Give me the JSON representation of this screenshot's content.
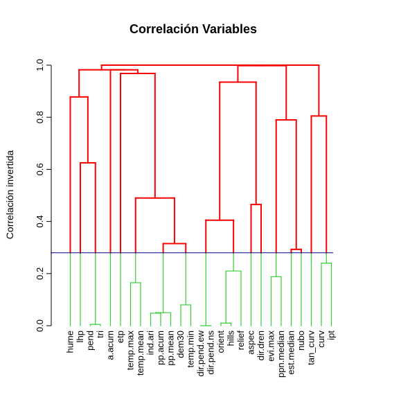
{
  "chart_data": {
    "type": "dendrogram",
    "title": "Correlación Variables",
    "ylabel": "Correlación invertida",
    "ylim": [
      0,
      1
    ],
    "yticks": [
      "0.0",
      "0.2",
      "0.4",
      "0.6",
      "0.8",
      "1.0"
    ],
    "cut_line": {
      "height": 0.28,
      "color": "#00008b"
    },
    "colors": {
      "above_cut": "#ff0000",
      "below_cut": "#32cd32"
    },
    "leaves": [
      "hume",
      "lhp",
      "pend",
      "tri",
      "a.acum",
      "etp",
      "temp.max",
      "temp.mean",
      "ind.ari",
      "pp.acum",
      "pp.mean",
      "dem30",
      "temp.min",
      "dir.pend.ew",
      "dir.pend.ns",
      "orient",
      "hills",
      "relief",
      "aspec",
      "dir.dren",
      "evi.max",
      "ppn.median",
      "est.median",
      "nubo",
      "tan_curv",
      "curv",
      "ipt"
    ],
    "merges": [
      [
        -14,
        -15,
        0.0
      ],
      [
        -9,
        -10,
        0.048
      ],
      [
        -16,
        -17,
        0.01
      ],
      [
        -3,
        -4,
        0.005
      ],
      [
        -11,
        2,
        0.05
      ],
      [
        -18,
        3,
        0.21
      ],
      [
        -12,
        -13,
        0.08
      ],
      [
        -7,
        -8,
        0.165
      ],
      [
        -21,
        -22,
        0.188
      ],
      [
        -26,
        -27,
        0.24
      ],
      [
        5,
        7,
        0.315
      ],
      [
        -23,
        -24,
        0.293
      ],
      [
        1,
        6,
        0.405
      ],
      [
        8,
        11,
        0.49
      ],
      [
        -19,
        -20,
        0.465
      ],
      [
        -2,
        4,
        0.625
      ],
      [
        9,
        12,
        0.79
      ],
      [
        -25,
        10,
        0.805
      ],
      [
        -1,
        16,
        0.878
      ],
      [
        13,
        15,
        0.935
      ],
      [
        -6,
        14,
        0.968
      ],
      [
        -5,
        21,
        0.982
      ],
      [
        20,
        17,
        0.998
      ],
      [
        23,
        18,
        1.0
      ],
      [
        19,
        22,
        0.982
      ],
      [
        25,
        24,
        1.0
      ]
    ]
  }
}
